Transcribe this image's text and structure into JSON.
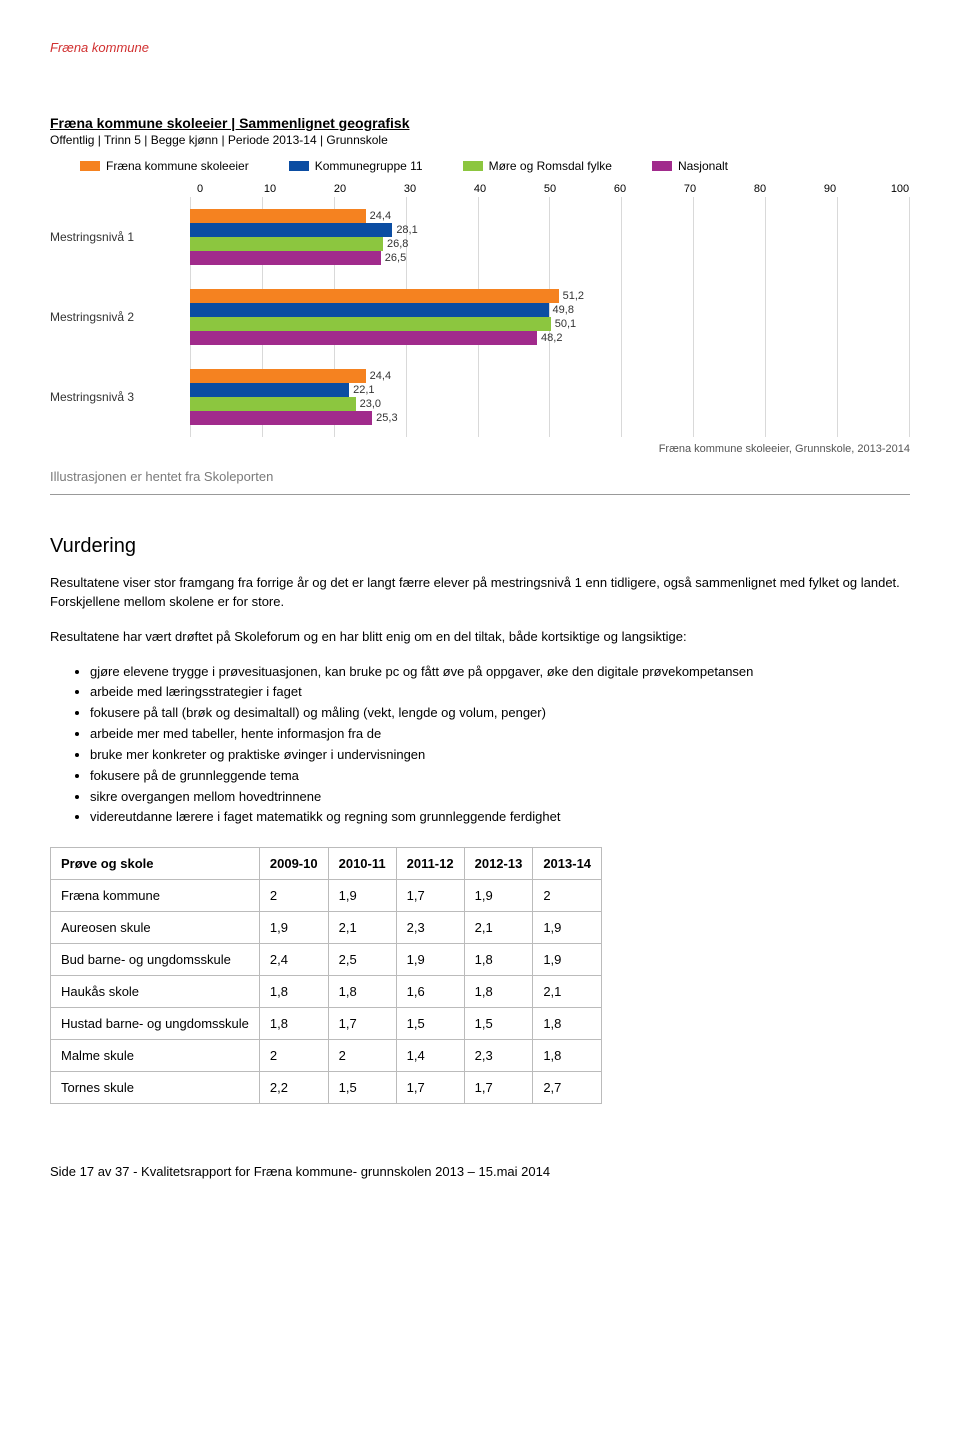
{
  "header_label": "Fræna kommune",
  "section_title": "Fræna kommune skoleeier | Sammenlignet geografisk",
  "section_sub": "Offentlig | Trinn 5 | Begge kjønn | Periode 2013-14 | Grunnskole",
  "chart": {
    "type": "bar",
    "series": [
      {
        "name": "Fræna kommune skoleeier",
        "color": "#f58220"
      },
      {
        "name": "Kommunegruppe 11",
        "color": "#0b4da2"
      },
      {
        "name": "Møre og Romsdal fylke",
        "color": "#8cc63f"
      },
      {
        "name": "Nasjonalt",
        "color": "#a12b8c"
      }
    ],
    "x_min": 0,
    "x_max": 100,
    "x_tick_step": 10,
    "grid_color": "#d9d9d9",
    "categories": [
      {
        "label": "Mestringsnivå 1",
        "values": [
          24.4,
          28.1,
          26.8,
          26.5
        ]
      },
      {
        "label": "Mestringsnivå 2",
        "values": [
          51.2,
          49.8,
          50.1,
          48.2
        ]
      },
      {
        "label": "Mestringsnivå 3",
        "values": [
          24.4,
          22.1,
          23.0,
          25.3
        ]
      }
    ],
    "footer": "Fræna kommune skoleeier, Grunnskole, 2013-2014"
  },
  "illustration_note": "Illustrasjonen er hentet fra Skoleporten",
  "vurdering_heading": "Vurdering",
  "vurdering_p1": "Resultatene viser stor framgang fra forrige år og det er langt færre elever på mestringsnivå 1 enn tidligere, også sammenlignet med fylket og landet. Forskjellene mellom skolene er for store.",
  "vurdering_p2": "Resultatene har vært drøftet på Skoleforum og en har blitt enig om en del tiltak, både kortsiktige og langsiktige:",
  "bullets": [
    "gjøre elevene trygge i prøvesituasjonen, kan bruke pc og fått øve på oppgaver, øke den digitale prøvekompetansen",
    "arbeide med læringsstrategier i faget",
    "fokusere på tall (brøk og desimaltall) og måling (vekt, lengde og volum, penger)",
    "arbeide mer med tabeller, hente informasjon fra de",
    "bruke mer konkreter og praktiske øvinger i undervisningen",
    "fokusere på de grunnleggende tema",
    "sikre overgangen mellom hovedtrinnene",
    " videreutdanne lærere i faget matematikk og regning som grunnleggende ferdighet"
  ],
  "table": {
    "columns": [
      "Prøve og skole",
      "2009-10",
      "2010-11",
      "2011-12",
      "2012-13",
      "2013-14"
    ],
    "rows": [
      [
        "Fræna kommune",
        "2",
        "1,9",
        "1,7",
        "1,9",
        "2"
      ],
      [
        "Aureosen skule",
        "1,9",
        "2,1",
        "2,3",
        "2,1",
        "1,9"
      ],
      [
        "Bud barne- og ungdomsskule",
        "2,4",
        "2,5",
        "1,9",
        "1,8",
        "1,9"
      ],
      [
        "Haukås skole",
        "1,8",
        "1,8",
        "1,6",
        "1,8",
        "2,1"
      ],
      [
        "Hustad barne- og ungdomsskule",
        "1,8",
        "1,7",
        "1,5",
        "1,5",
        "1,8"
      ],
      [
        "Malme skule",
        "2",
        "2",
        "1,4",
        "2,3",
        "1,8"
      ],
      [
        "Tornes skule",
        "2,2",
        "1,5",
        "1,7",
        "1,7",
        "2,7"
      ]
    ]
  },
  "page_footer": "Side 17 av 37 - Kvalitetsrapport for Fræna kommune- grunnskolen 2013 – 15.mai 2014"
}
